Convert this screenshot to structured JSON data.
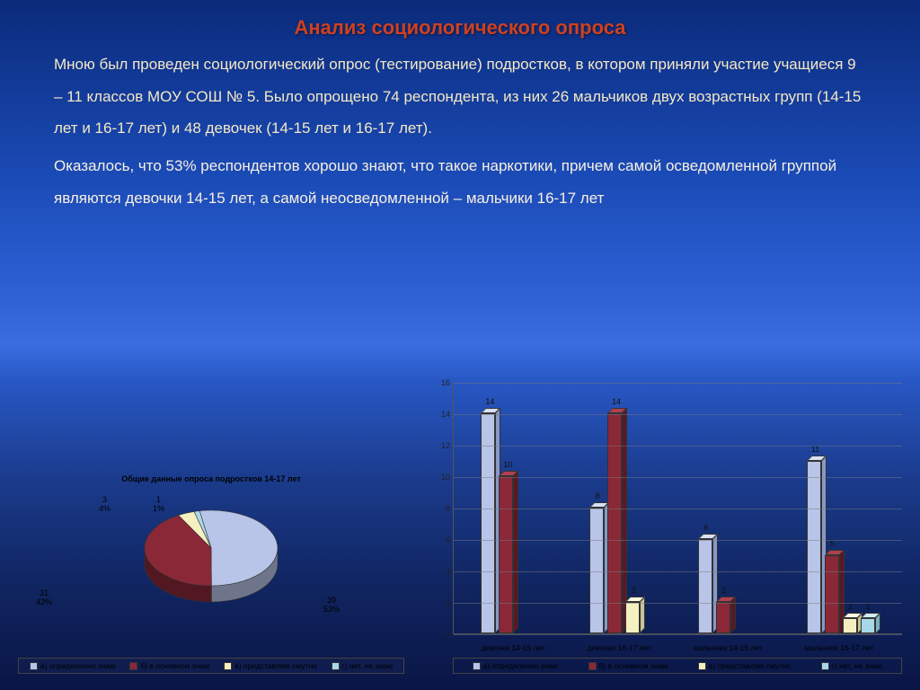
{
  "title": "Анализ социологического опроса",
  "paragraph1": "Мною был проведен социологический опрос (тестирование) подростков, в котором приняли участие учащиеся 9 – 11 классов МОУ СОШ № 5. Было опрощено 74 респондента, из них 26 мальчиков двух возрастных групп (14-15 лет и 16-17 лет) и 48 девочек (14-15 лет и 16-17 лет).",
  "paragraph2": "Оказалось, что 53% респондентов хорошо знают, что такое наркотики, причем самой осведомленной группой являются девочки 14-15 лет, а самой неосведомленной – мальчики 16-17 лет",
  "pie": {
    "type": "pie",
    "title": "Общие данные опроса подростков 14-17 лет",
    "slices": [
      {
        "label": "а) определенно знаю",
        "value": 39,
        "pct": "53%",
        "color": "#b8c4e8"
      },
      {
        "label": "б) в основном знаю",
        "value": 31,
        "pct": "42%",
        "color": "#8a2838"
      },
      {
        "label": "в) представляю смутно",
        "value": 3,
        "pct": "4%",
        "color": "#f5f0c0"
      },
      {
        "label": "г) нет, не знаю",
        "value": 1,
        "pct": "1%",
        "color": "#a8d8e8"
      }
    ],
    "edge_color": "#333333",
    "background": "transparent",
    "label_fontsize": 9
  },
  "bar": {
    "type": "bar",
    "y_max": 16,
    "y_tick_step": 2,
    "grid_color": "#7a7a88",
    "label_fontsize": 9,
    "categories": [
      "девочки 14-15 лет",
      "девочки 16-17 лет",
      "мальчики 14-15 лет",
      "мальчики 16-17 лет"
    ],
    "series": [
      {
        "label": "а) определенно знаю",
        "color": "#b8c4e8",
        "top": "#d8e0f4",
        "side": "#8898c8",
        "values": [
          14,
          8,
          6,
          11
        ]
      },
      {
        "label": "б) в основном знаю",
        "color": "#8a2838",
        "top": "#b04050",
        "side": "#5a1824",
        "values": [
          10,
          14,
          2,
          5
        ]
      },
      {
        "label": "в) представляю смутно",
        "color": "#f5f0c0",
        "top": "#fffbe0",
        "side": "#c8c498",
        "values": [
          0,
          2,
          0,
          1
        ]
      },
      {
        "label": "г) нет, не знаю",
        "color": "#a8d8e8",
        "top": "#d0ecf4",
        "side": "#78b0c4",
        "values": [
          0,
          0,
          0,
          1
        ]
      }
    ]
  }
}
